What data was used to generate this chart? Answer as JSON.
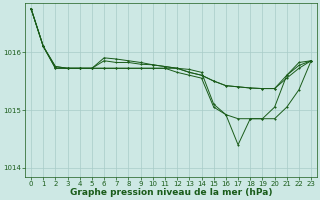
{
  "title": "Graphe pression niveau de la mer (hPa)",
  "background_color": "#cde8e4",
  "plot_bg_color": "#cde8e4",
  "line_color": "#1a5c1a",
  "grid_color": "#a8ccc8",
  "hours": [
    0,
    1,
    2,
    3,
    4,
    5,
    6,
    7,
    8,
    9,
    10,
    11,
    12,
    13,
    14,
    15,
    16,
    17,
    18,
    19,
    20,
    21,
    22,
    23
  ],
  "series1": [
    1016.75,
    1016.1,
    1015.75,
    1015.72,
    1015.72,
    1015.72,
    1015.85,
    1015.82,
    1015.82,
    1015.79,
    1015.78,
    1015.75,
    1015.72,
    1015.65,
    1015.6,
    1015.5,
    1015.42,
    1015.4,
    1015.38,
    1015.37,
    1015.37,
    1015.6,
    1015.77,
    1015.85
  ],
  "series2": [
    1016.75,
    1016.1,
    1015.72,
    1015.72,
    1015.72,
    1015.72,
    1015.72,
    1015.72,
    1015.72,
    1015.72,
    1015.72,
    1015.72,
    1015.72,
    1015.65,
    1015.6,
    1015.5,
    1015.42,
    1015.4,
    1015.38,
    1015.37,
    1015.37,
    1015.55,
    1015.72,
    1015.85
  ],
  "series3": [
    1016.75,
    1016.1,
    1015.75,
    1015.72,
    1015.72,
    1015.72,
    1015.9,
    1015.88,
    1015.85,
    1015.82,
    1015.78,
    1015.75,
    1015.72,
    1015.7,
    1015.65,
    1015.1,
    1014.92,
    1014.85,
    1014.85,
    1014.85,
    1015.05,
    1015.6,
    1015.82,
    1015.85
  ],
  "series4": [
    1016.75,
    1016.1,
    1015.72,
    1015.72,
    1015.72,
    1015.72,
    1015.72,
    1015.72,
    1015.72,
    1015.72,
    1015.72,
    1015.72,
    1015.65,
    1015.6,
    1015.55,
    1015.05,
    1014.92,
    1014.4,
    1014.85,
    1014.85,
    1014.85,
    1015.05,
    1015.35,
    1015.85
  ],
  "ylim": [
    1013.85,
    1016.85
  ],
  "yticks": [
    1014,
    1015,
    1016
  ],
  "ylabel_fontsize": 5.0,
  "xlabel_fontsize": 5.0,
  "title_fontsize": 6.5
}
